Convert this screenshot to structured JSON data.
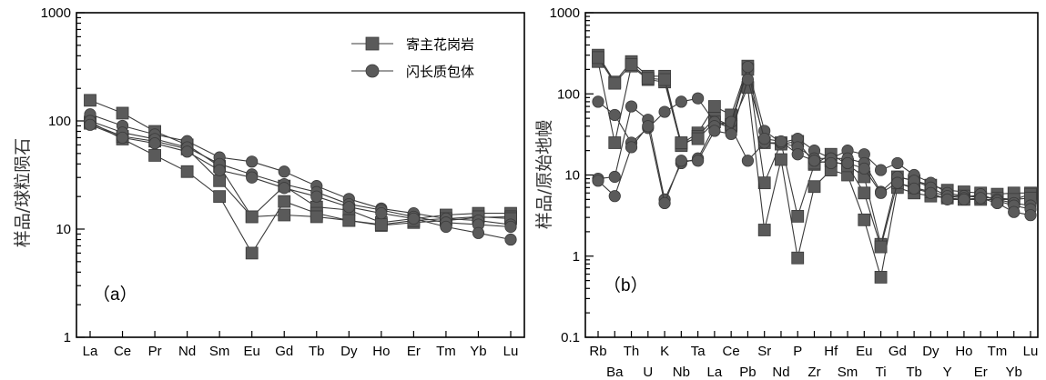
{
  "chart_data": [
    {
      "type": "line",
      "panel_label": "（a）",
      "ylabel": "样品/球粒陨石",
      "yscale": "log",
      "ylim": [
        1,
        1000
      ],
      "yticks": [
        "1",
        "10",
        "100",
        "1000"
      ],
      "categories": [
        "La",
        "Ce",
        "Pr",
        "Nd",
        "Sm",
        "Eu",
        "Gd",
        "Tb",
        "Dy",
        "Ho",
        "Er",
        "Tm",
        "Yb",
        "Lu"
      ],
      "legend": {
        "position": "top-right",
        "entries": [
          "寄主花岗岩",
          "闪长质包体"
        ]
      },
      "series": [
        {
          "name": "寄主花岗岩",
          "marker": "square",
          "values": [
            155,
            118,
            80,
            60,
            38,
            13,
            25,
            16,
            15,
            11.5,
            12.5,
            13.5,
            14,
            14
          ]
        },
        {
          "name": "寄主花岗岩",
          "marker": "square",
          "values": [
            98,
            68,
            48,
            34,
            20,
            6,
            18,
            14,
            12,
            10.8,
            11.5,
            12,
            12.8,
            13
          ]
        },
        {
          "name": "寄主花岗岩",
          "marker": "square",
          "values": [
            95,
            72,
            65,
            55,
            28,
            13,
            13.5,
            13,
            12,
            11,
            12,
            12.5,
            13,
            12.5
          ]
        },
        {
          "name": "闪长质包体",
          "marker": "circle",
          "values": [
            115,
            90,
            75,
            65,
            46,
            42,
            34,
            25,
            19,
            15.5,
            14,
            12.5,
            12,
            11
          ]
        },
        {
          "name": "闪长质包体",
          "marker": "circle",
          "values": [
            100,
            78,
            68,
            57,
            40,
            32,
            26,
            22,
            17,
            15,
            13,
            11.5,
            11,
            10.5
          ]
        },
        {
          "name": "闪长质包体",
          "marker": "circle",
          "values": [
            92,
            70,
            62,
            52,
            35,
            30,
            24,
            20,
            16,
            14,
            12.5,
            10.5,
            9.2,
            8
          ]
        }
      ]
    },
    {
      "type": "line",
      "panel_label": "（b）",
      "ylabel": "样品/原始地幔",
      "yscale": "log",
      "ylim": [
        0.1,
        1000
      ],
      "yticks": [
        "0.1",
        "1",
        "10",
        "100",
        "1000"
      ],
      "categories": [
        "Rb",
        "Ba",
        "Th",
        "U",
        "K",
        "Nb",
        "Ta",
        "La",
        "Ce",
        "Pb",
        "Sr",
        "Nd",
        "P",
        "Zr",
        "Hf",
        "Sm",
        "Eu",
        "Ti",
        "Gd",
        "Tb",
        "Dy",
        "Y",
        "Ho",
        "Er",
        "Tm",
        "Yb",
        "Lu"
      ],
      "series": [
        {
          "name": "寄主花岗岩",
          "marker": "square",
          "values": [
            300,
            140,
            250,
            165,
            165,
            24,
            33,
            70,
            55,
            220,
            8,
            25,
            3.1,
            13.5,
            18,
            13.5,
            9.5,
            1.4,
            9.5,
            8.5,
            7.5,
            6.5,
            6.2,
            6,
            5.8,
            6,
            6
          ]
        },
        {
          "name": "寄主花岗岩",
          "marker": "square",
          "values": [
            250,
            25,
            220,
            150,
            140,
            23,
            30,
            50,
            40,
            120,
            2.1,
            15.5,
            0.95,
            7.2,
            11.5,
            10,
            2.8,
            0.55,
            7,
            6,
            5.5,
            5.2,
            5,
            5,
            5,
            5,
            5.8
          ]
        },
        {
          "name": "寄主花岗岩",
          "marker": "square",
          "values": [
            280,
            135,
            230,
            155,
            150,
            25,
            28,
            45,
            42,
            200,
            25,
            24,
            26,
            14,
            15,
            13,
            6,
            1.3,
            8,
            7,
            6.2,
            5.5,
            5.5,
            5.3,
            5.2,
            5,
            5.2
          ]
        },
        {
          "name": "闪长质包体",
          "marker": "circle",
          "values": [
            80,
            55,
            25,
            38,
            60,
            80,
            88,
            45,
            38,
            15,
            25,
            25,
            28,
            20,
            16,
            20,
            18,
            11.5,
            14,
            10,
            8,
            6,
            5.5,
            5.5,
            5,
            4.5,
            4.2
          ]
        },
        {
          "name": "闪长质包体",
          "marker": "circle",
          "values": [
            9,
            9.5,
            70,
            48,
            5,
            14,
            16,
            40,
            45,
            215,
            35,
            25,
            22,
            16,
            16,
            16,
            14,
            6.2,
            9.5,
            8.5,
            7,
            5.5,
            5.2,
            5.8,
            4.8,
            4.2,
            3.8
          ]
        },
        {
          "name": "闪长质包体",
          "marker": "circle",
          "values": [
            8.5,
            5.5,
            22,
            40,
            4.5,
            15,
            15,
            35,
            32,
            150,
            28,
            26,
            18,
            15,
            14,
            14,
            12,
            6,
            8,
            6.8,
            6,
            5,
            5,
            5.2,
            4.5,
            3.5,
            3.2
          ]
        }
      ]
    }
  ]
}
